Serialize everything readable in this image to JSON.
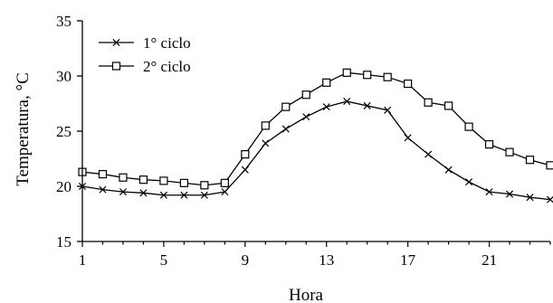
{
  "chart_data": {
    "type": "line",
    "title": "",
    "xlabel": "Hora",
    "ylabel": "Temperatura, °C",
    "xlim": [
      1,
      24
    ],
    "ylim": [
      15,
      35
    ],
    "xticks": [
      1,
      5,
      9,
      13,
      17,
      21
    ],
    "yticks": [
      15,
      20,
      25,
      30,
      35
    ],
    "grid": false,
    "legend_position": "top-left",
    "x": [
      1,
      2,
      3,
      4,
      5,
      6,
      7,
      8,
      9,
      10,
      11,
      12,
      13,
      14,
      15,
      16,
      17,
      18,
      19,
      20,
      21,
      22,
      23,
      24
    ],
    "series": [
      {
        "name": "1° ciclo",
        "marker": "x",
        "values": [
          20.0,
          19.7,
          19.5,
          19.4,
          19.2,
          19.2,
          19.2,
          19.5,
          21.5,
          23.9,
          25.2,
          26.3,
          27.2,
          27.7,
          27.3,
          26.9,
          24.4,
          22.9,
          21.5,
          20.4,
          19.5,
          19.3,
          19.0,
          18.8
        ]
      },
      {
        "name": "2° ciclo",
        "marker": "square",
        "values": [
          21.3,
          21.1,
          20.8,
          20.6,
          20.5,
          20.3,
          20.1,
          20.3,
          22.9,
          25.5,
          27.2,
          28.3,
          29.4,
          30.3,
          30.1,
          29.9,
          29.3,
          27.6,
          27.3,
          25.4,
          23.8,
          23.1,
          22.4,
          21.9
        ]
      }
    ],
    "colors": {
      "line": "#000000",
      "background": "#ffffff"
    }
  }
}
